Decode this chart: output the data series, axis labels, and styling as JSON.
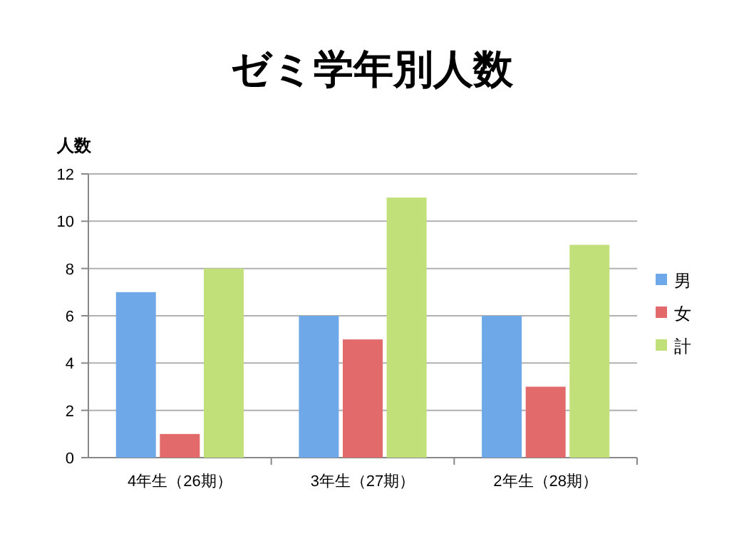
{
  "chart_data": {
    "type": "bar",
    "title": "ゼミ学年別人数",
    "ylabel": "人数",
    "categories": [
      "4年生（26期）",
      "3年生（27期）",
      "2年生（28期）"
    ],
    "series": [
      {
        "name": "男",
        "color": "#6fa8e8",
        "values": [
          7,
          6,
          6
        ]
      },
      {
        "name": "女",
        "color": "#e26a6a",
        "values": [
          1,
          5,
          3
        ]
      },
      {
        "name": "計",
        "color": "#c2e07a",
        "values": [
          8,
          11,
          9
        ]
      }
    ],
    "ylim": [
      0,
      12
    ],
    "yticks": [
      0,
      2,
      4,
      6,
      8,
      10,
      12
    ],
    "grid": "y",
    "legend": "right"
  }
}
